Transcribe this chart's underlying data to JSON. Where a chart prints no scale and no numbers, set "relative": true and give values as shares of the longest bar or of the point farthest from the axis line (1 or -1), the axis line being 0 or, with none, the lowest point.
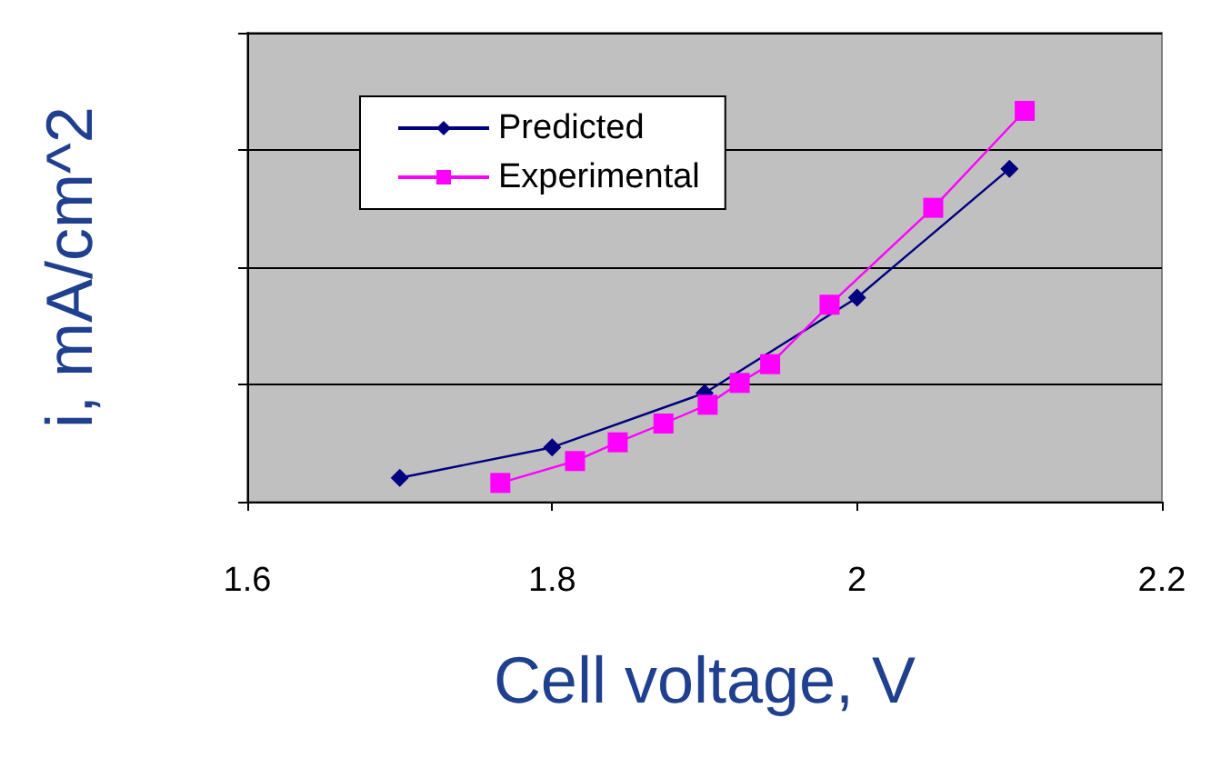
{
  "chart_data": {
    "type": "line",
    "xlabel": "Cell voltage, V",
    "ylabel": "i, mA/cm^2",
    "relative": true,
    "xlim": [
      1.6,
      2.2
    ],
    "xticks": [
      1.6,
      1.8,
      2,
      2.2
    ],
    "grid": "y",
    "legend": "top left",
    "series": [
      {
        "name": "Predicted",
        "color": "#000080",
        "marker": "diamond",
        "x": [
          1.7,
          1.8,
          1.9,
          2.0,
          2.1
        ],
        "values": [
          0.061,
          0.139,
          0.278,
          0.522,
          0.852
        ]
      },
      {
        "name": "Experimental",
        "color": "#ff00ff",
        "marker": "square",
        "x": [
          1.766,
          1.815,
          1.843,
          1.873,
          1.902,
          1.923,
          1.943,
          1.982,
          2.05,
          2.11
        ],
        "values": [
          0.048,
          0.104,
          0.152,
          0.2,
          0.248,
          0.304,
          0.352,
          0.504,
          0.752,
          1
        ]
      }
    ]
  }
}
